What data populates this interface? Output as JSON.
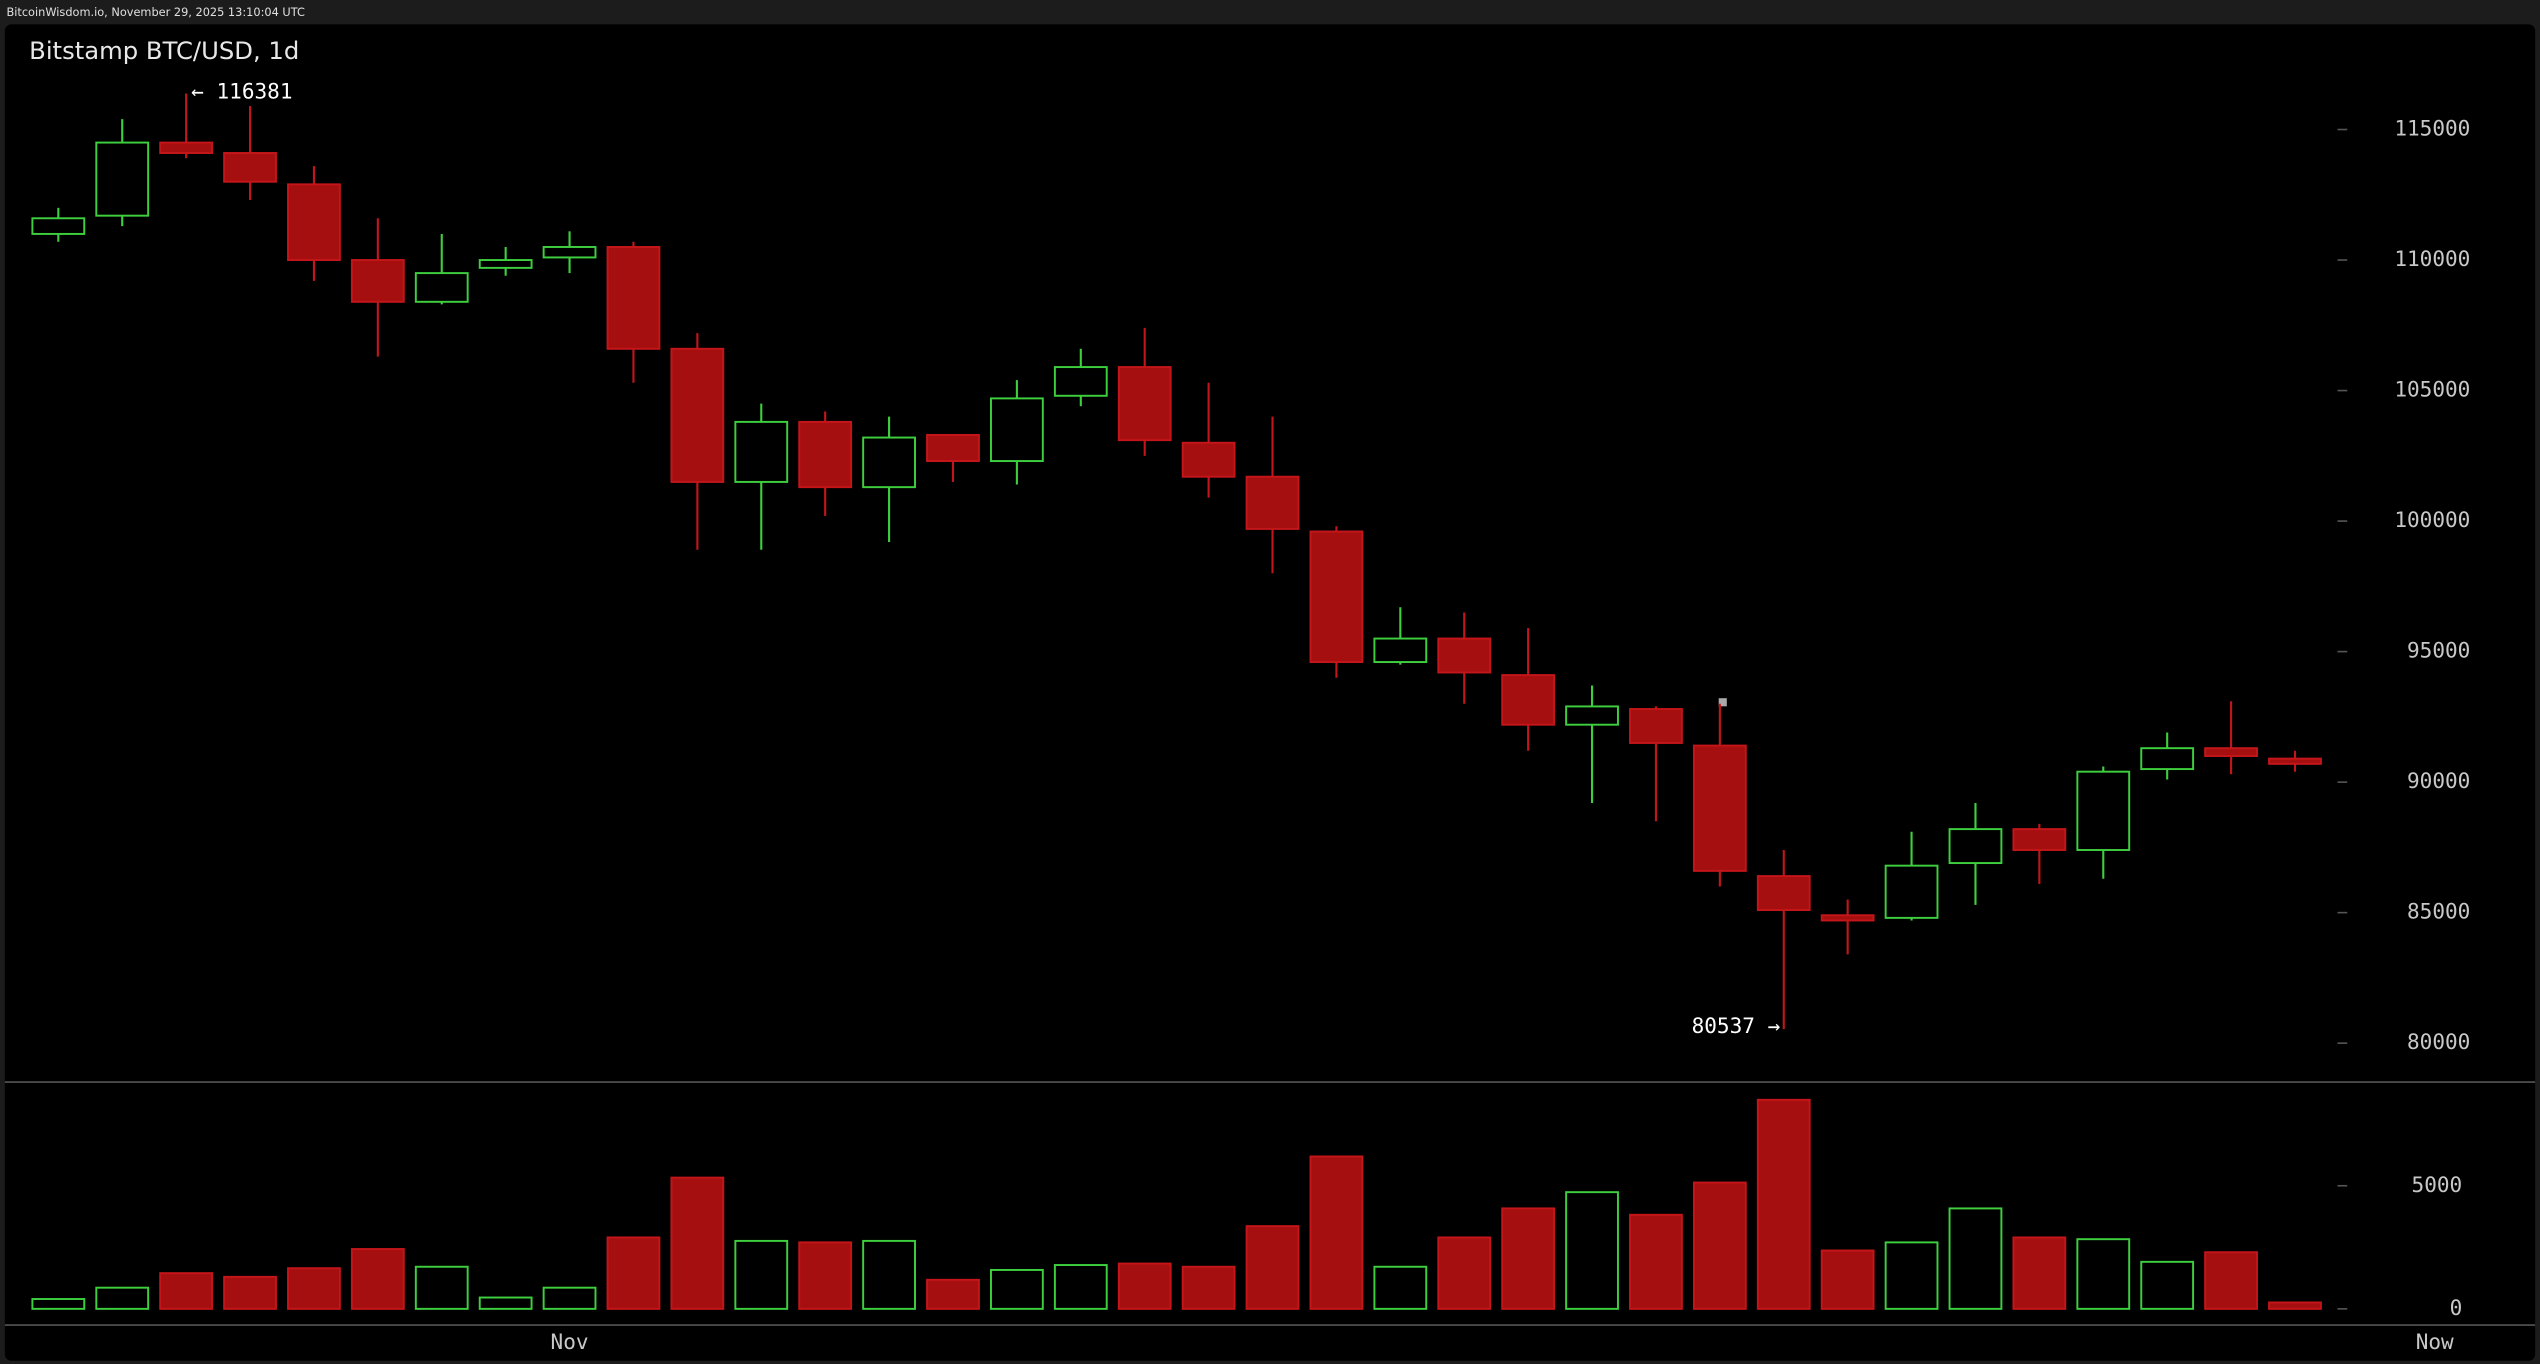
{
  "header": "BitcoinWisdom.io, November 29, 2025 13:10:04 UTC",
  "chart_data": {
    "type": "candlestick",
    "title": "Bitstamp BTC/USD, 1d",
    "categories": [
      null,
      null,
      null,
      null,
      null,
      null,
      null,
      null,
      "Nov",
      null,
      null,
      null,
      null,
      null,
      null,
      null,
      null,
      null,
      null,
      null,
      null,
      null,
      null,
      null,
      null,
      null,
      null,
      null,
      null,
      null,
      null,
      null,
      null,
      null,
      null,
      null
    ],
    "x_end_label": "Now",
    "open": [
      111000,
      111700,
      114500,
      114100,
      112900,
      110000,
      108400,
      109700,
      110100,
      110500,
      106600,
      101500,
      103800,
      101300,
      103300,
      102300,
      104800,
      105900,
      103000,
      101700,
      99600,
      94600,
      95500,
      94100,
      92200,
      92800,
      91400,
      86400,
      84900,
      84800,
      86900,
      88200,
      87400,
      90500,
      91300,
      90900
    ],
    "high": [
      112000,
      115400,
      116381,
      115900,
      113600,
      111600,
      111000,
      110500,
      111100,
      110700,
      107200,
      104500,
      104200,
      104000,
      103300,
      105400,
      106600,
      107400,
      105300,
      104000,
      99800,
      96700,
      96500,
      95900,
      93700,
      92900,
      93000,
      87400,
      85500,
      88100,
      89200,
      88400,
      90600,
      91900,
      93100,
      91200
    ],
    "low": [
      110700,
      111300,
      113900,
      112300,
      109200,
      106300,
      108300,
      109400,
      109500,
      105300,
      98900,
      98900,
      100200,
      99200,
      101500,
      101400,
      104400,
      102500,
      100900,
      98000,
      94000,
      94500,
      93000,
      91200,
      89200,
      88500,
      86000,
      80537,
      83400,
      84700,
      85300,
      86100,
      86300,
      90100,
      90300,
      90400
    ],
    "close": [
      111600,
      114500,
      114100,
      113000,
      110000,
      108400,
      109500,
      110000,
      110500,
      106600,
      101500,
      103800,
      101300,
      103200,
      102300,
      104700,
      105900,
      103100,
      101700,
      99700,
      94600,
      95500,
      94200,
      92200,
      92900,
      91500,
      86600,
      85100,
      84700,
      86800,
      88200,
      87400,
      90400,
      91300,
      91000,
      90700
    ],
    "volume": [
      400,
      860,
      1450,
      1300,
      1650,
      2430,
      1710,
      460,
      860,
      2900,
      5330,
      2760,
      2700,
      2760,
      1180,
      1580,
      1780,
      1840,
      1710,
      3360,
      6190,
      1710,
      2900,
      4080,
      4740,
      3820,
      5130,
      8490,
      2370,
      2700,
      4080,
      2900,
      2830,
      1910,
      2300,
      260
    ],
    "up_color": "#3ecf3e",
    "down_color": "#a50f0f",
    "down_outline": "#c4161a",
    "ylim": [
      78570,
      119030
    ],
    "yticks": [
      80000,
      85000,
      90000,
      95000,
      100000,
      105000,
      110000,
      115000
    ],
    "volume_ylim": [
      -660,
      9210
    ],
    "volume_yticks": [
      0,
      5000
    ],
    "annotations": [
      {
        "text": "← 116381"
      },
      {
        "text": "80537 →"
      }
    ]
  }
}
